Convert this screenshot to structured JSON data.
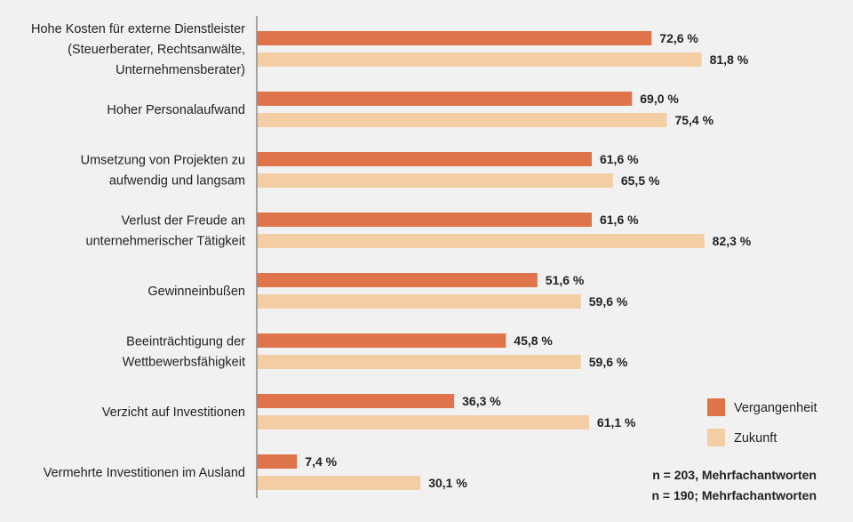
{
  "chart_data": {
    "type": "bar",
    "orientation": "horizontal",
    "categories": [
      [
        "Hohe Kosten für externe Dienstleister",
        "(Steuerberater, Rechtsanwälte,",
        "Unternehmensberater)"
      ],
      [
        "Hoher Personalaufwand"
      ],
      [
        "Umsetzung von Projekten zu",
        "aufwendig und langsam"
      ],
      [
        "Verlust der Freude an",
        "unternehmerischer Tätigkeit"
      ],
      [
        "Gewinneinbußen"
      ],
      [
        "Beeinträchtigung der",
        "Wettbewerbsfähigkeit"
      ],
      [
        "Verzicht auf Investitionen"
      ],
      [
        "Vermehrte Investitionen im Ausland"
      ]
    ],
    "series": [
      {
        "name": "Vergangenheit",
        "color": "#df734a",
        "values": [
          72.6,
          69.0,
          61.6,
          61.6,
          51.6,
          45.8,
          36.3,
          7.4
        ],
        "labels": [
          "72,6 %",
          "69,0 %",
          "61,6 %",
          "61,6 %",
          "51,6 %",
          "45,8 %",
          "36,3 %",
          "7,4 %"
        ]
      },
      {
        "name": "Zukunft",
        "color": "#f3cda3",
        "values": [
          81.8,
          75.4,
          65.5,
          82.3,
          59.6,
          59.6,
          61.1,
          30.1
        ],
        "labels": [
          "81,8 %",
          "75,4 %",
          "65,5 %",
          "82,3 %",
          "59,6 %",
          "59,6 %",
          "61,1 %",
          "30,1 %"
        ]
      }
    ],
    "xlim": [
      0,
      100
    ],
    "grid": false,
    "legend_position": "right",
    "notes": [
      "n = 203, Mehrfachantworten",
      "n = 190; Mehrfachantworten"
    ]
  }
}
